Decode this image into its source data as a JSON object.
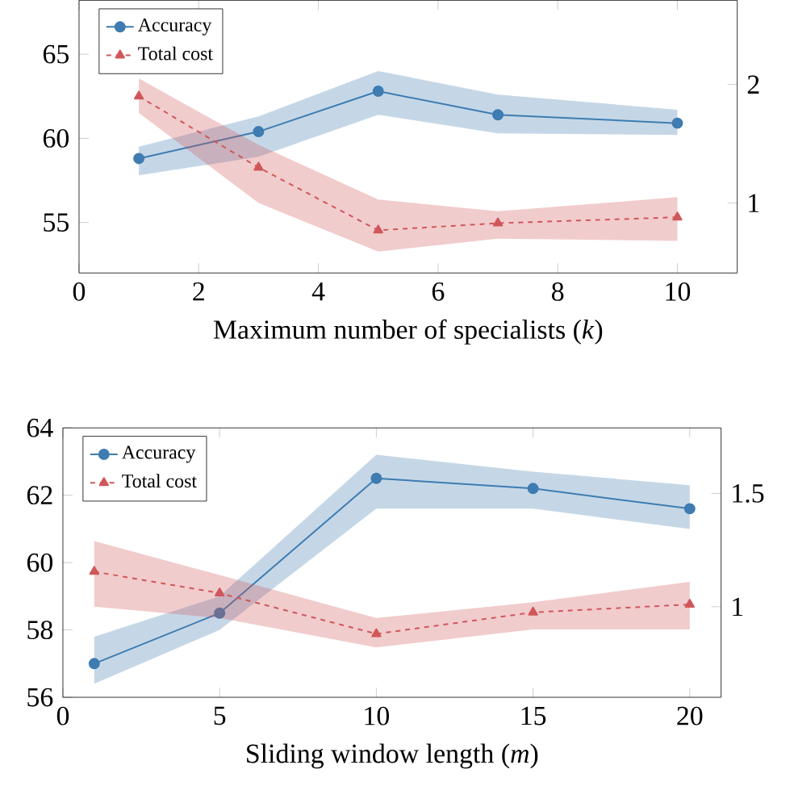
{
  "chart_data": [
    {
      "type": "line",
      "xlabel": "Maximum number of specialists (*k*)",
      "xlim": [
        0,
        11
      ],
      "xticks": [
        0,
        2,
        4,
        6,
        8,
        10
      ],
      "ylim": [
        52,
        68.2
      ],
      "yticks": [
        55,
        60,
        65
      ],
      "y2lim": [
        0.41,
        2.71
      ],
      "y2ticks": [
        1,
        2
      ],
      "legend": "top left",
      "series": [
        {
          "name": "Accuracy",
          "color": "#3e7cb1",
          "marker": "circle",
          "line_style": "solid",
          "x": [
            1,
            3,
            5,
            7,
            10
          ],
          "values": [
            58.8,
            60.4,
            62.8,
            61.4,
            60.9
          ],
          "lower": [
            57.8,
            58.9,
            61.4,
            60.3,
            60.2
          ],
          "upper": [
            59.5,
            61.3,
            64.0,
            62.6,
            61.7
          ]
        },
        {
          "name": "Total cost",
          "color": "#d0575a",
          "marker": "triangle",
          "line_style": "dashed",
          "axis": "y2",
          "x": [
            1,
            3,
            5,
            7,
            10
          ],
          "values": [
            1.9,
            1.3,
            0.77,
            0.83,
            0.88
          ],
          "lower": [
            1.76,
            1.0,
            0.59,
            0.7,
            0.68
          ],
          "upper": [
            2.05,
            1.49,
            1.03,
            0.93,
            1.05
          ]
        }
      ]
    },
    {
      "type": "line",
      "xlabel": "Sliding window length (*m*)",
      "xlim": [
        0,
        21
      ],
      "xticks": [
        0,
        5,
        10,
        15,
        20
      ],
      "ylim": [
        56,
        64
      ],
      "yticks": [
        56,
        58,
        60,
        62,
        64
      ],
      "y2lim": [
        0.6,
        1.79
      ],
      "y2ticks": [
        1,
        1.5
      ],
      "legend": "top left",
      "series": [
        {
          "name": "Accuracy",
          "color": "#3e7cb1",
          "marker": "circle",
          "line_style": "solid",
          "x": [
            1,
            5,
            10,
            15,
            20
          ],
          "values": [
            57.0,
            58.5,
            62.5,
            62.2,
            61.6
          ],
          "lower": [
            56.4,
            58.0,
            61.6,
            61.6,
            61.0
          ],
          "upper": [
            57.8,
            59.0,
            63.2,
            62.7,
            62.3
          ]
        },
        {
          "name": "Total cost",
          "color": "#d0575a",
          "marker": "triangle",
          "line_style": "dashed",
          "axis": "y2",
          "x": [
            1,
            5,
            10,
            15,
            20
          ],
          "values": [
            1.155,
            1.06,
            0.88,
            0.975,
            1.01
          ],
          "lower": [
            1.0,
            0.95,
            0.82,
            0.9,
            0.9
          ],
          "upper": [
            1.29,
            1.14,
            0.95,
            1.02,
            1.11
          ]
        }
      ]
    }
  ]
}
